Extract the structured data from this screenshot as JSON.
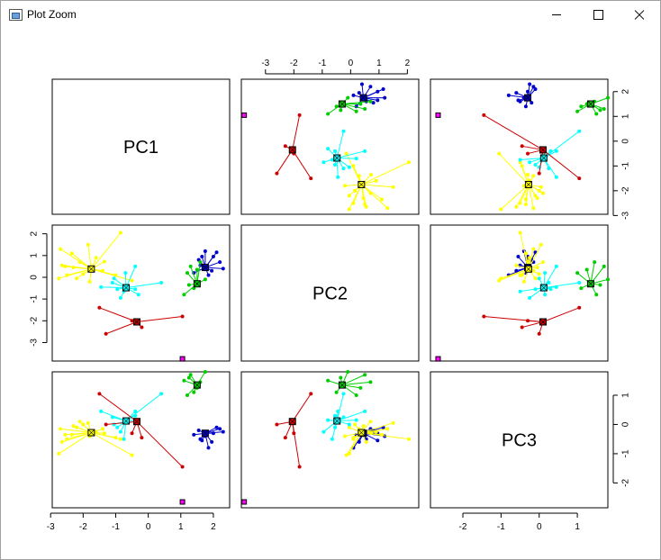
{
  "window": {
    "title": "Plot Zoom",
    "icon": "plot-window-icon",
    "controls": [
      "minimize-icon",
      "maximize-icon",
      "close-icon"
    ]
  },
  "chart_data": {
    "type": "scatter",
    "subtype": "pairs-plot-with-cluster-centroids",
    "variables": [
      "PC1",
      "PC2",
      "PC3"
    ],
    "axis_ticks": {
      "PC1": [
        -3,
        -2,
        -1,
        0,
        1,
        2
      ],
      "PC2": [
        -3,
        -2,
        -1,
        0,
        1,
        2
      ],
      "PC3": [
        -2,
        -1,
        0,
        1
      ]
    },
    "ranges": {
      "PC1": [
        -2.95,
        2.5
      ],
      "PC2": [
        -3.85,
        2.4
      ],
      "PC3": [
        -2.85,
        1.8
      ]
    },
    "grid": false,
    "legend": "none",
    "clusters": [
      {
        "color": "#0000cd",
        "centroid": [
          1.75,
          0.45,
          -0.3
        ],
        "points": [
          [
            1.55,
            0.8,
            -0.2
          ],
          [
            1.75,
            1.2,
            -0.4
          ],
          [
            2.0,
            0.95,
            -0.3
          ],
          [
            2.2,
            0.7,
            -0.15
          ],
          [
            1.95,
            0.3,
            -0.6
          ],
          [
            2.3,
            0.4,
            -0.25
          ],
          [
            1.6,
            0.55,
            -0.5
          ],
          [
            1.4,
            0.2,
            -0.35
          ],
          [
            1.85,
            0.1,
            -0.8
          ],
          [
            2.1,
            1.15,
            -0.1
          ],
          [
            1.65,
            0.95,
            -0.55
          ]
        ]
      },
      {
        "color": "#00cd00",
        "centroid": [
          1.5,
          -0.3,
          1.35
        ],
        "points": [
          [
            1.1,
            -0.8,
            1.5
          ],
          [
            1.3,
            0.5,
            1.7
          ],
          [
            1.4,
            -0.5,
            1.1
          ],
          [
            1.6,
            0.7,
            1.45
          ],
          [
            1.2,
            0.2,
            1.0
          ],
          [
            1.75,
            -0.1,
            1.8
          ],
          [
            1.5,
            0.35,
            1.25
          ],
          [
            1.25,
            -0.35,
            1.6
          ]
        ]
      },
      {
        "color": "#ffff00",
        "centroid": [
          -1.75,
          0.38,
          -0.28
        ],
        "points": [
          [
            -2.7,
            1.3,
            -0.15
          ],
          [
            -2.55,
            0.5,
            -0.35
          ],
          [
            -2.2,
            -0.05,
            -0.1
          ],
          [
            -1.35,
            0.72,
            -0.3
          ],
          [
            -0.85,
            2.05,
            -0.5
          ],
          [
            -2.5,
            0.1,
            -0.5
          ],
          [
            -2.1,
            0.7,
            0.1
          ],
          [
            -1.6,
            0.9,
            -0.25
          ],
          [
            -2.3,
            0.45,
            -0.05
          ],
          [
            -1.0,
            0.1,
            -0.45
          ],
          [
            -2.75,
            -0.05,
            -1.0
          ],
          [
            -1.85,
            1.5,
            0.05
          ],
          [
            -2.35,
            1.1,
            -0.35
          ],
          [
            -0.5,
            -0.15,
            -1.05
          ],
          [
            -1.8,
            -0.2,
            -0.4
          ],
          [
            -2.0,
            0.15,
            0.0
          ],
          [
            -2.65,
            0.55,
            -0.6
          ],
          [
            -1.4,
            0.3,
            -0.15
          ]
        ]
      },
      {
        "color": "#00ffff",
        "centroid": [
          -0.68,
          -0.48,
          0.12
        ],
        "points": [
          [
            -1.1,
            -0.25,
            0.25
          ],
          [
            -0.85,
            -0.95,
            -0.25
          ],
          [
            -0.4,
            -0.55,
            0.3
          ],
          [
            0.4,
            -0.25,
            1.05
          ],
          [
            -0.7,
            0.2,
            0.15
          ],
          [
            -0.95,
            -0.55,
            -0.1
          ],
          [
            -0.4,
            0.5,
            0.45
          ],
          [
            -0.3,
            -0.8,
            0.15
          ],
          [
            -0.75,
            -0.65,
            -0.5
          ],
          [
            -1.45,
            -0.45,
            0.45
          ],
          [
            -1.05,
            -0.05,
            0.0
          ]
        ]
      },
      {
        "color": "#cd0000",
        "centroid": [
          -0.35,
          -2.05,
          0.1
        ],
        "points": [
          [
            -1.5,
            -1.4,
            1.05
          ],
          [
            1.05,
            -1.8,
            -1.45
          ],
          [
            -1.3,
            -2.6,
            0.0
          ],
          [
            -0.5,
            -2.0,
            -0.3
          ],
          [
            -0.2,
            -2.3,
            -0.45
          ]
        ]
      },
      {
        "color": "#ff00ff",
        "centroid": [
          1.05,
          -3.75,
          -2.65
        ],
        "points": []
      }
    ]
  }
}
